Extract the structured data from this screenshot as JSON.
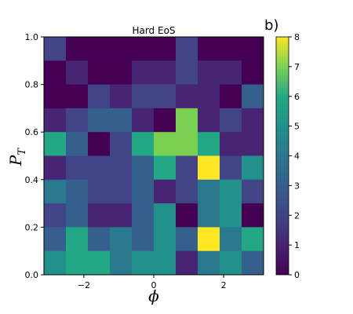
{
  "chart_data": {
    "type": "heatmap",
    "title": "Hard EoS",
    "panel_label": "b)",
    "xlabel": "ϕ",
    "ylabel_main": "P",
    "ylabel_sub": "T",
    "xlim": [
      -3.1416,
      3.1416
    ],
    "ylim": [
      0.0,
      1.0
    ],
    "x_ticks": [
      -2,
      0,
      2
    ],
    "x_tick_labels": [
      "−2",
      "0",
      "2"
    ],
    "y_ticks": [
      0.0,
      0.2,
      0.4,
      0.6,
      0.8,
      1.0
    ],
    "y_tick_labels": [
      "0.0",
      "0.2",
      "0.4",
      "0.6",
      "0.8",
      "1.0"
    ],
    "colorbar": {
      "min": 0,
      "max": 8,
      "ticks": [
        0,
        1,
        2,
        3,
        4,
        5,
        6,
        7,
        8
      ],
      "tick_labels": [
        "0",
        "1",
        "2",
        "3",
        "4",
        "5",
        "6",
        "7",
        "8"
      ],
      "colormap": "viridis"
    },
    "n_cols": 10,
    "n_rows": 10,
    "grid": false,
    "counts_rows_top_to_bottom": [
      [
        2,
        0,
        0,
        0,
        0,
        0,
        2,
        0,
        0,
        0
      ],
      [
        0,
        1,
        0,
        0,
        1,
        1,
        2,
        1,
        1,
        0
      ],
      [
        0,
        0,
        2,
        1,
        2,
        2,
        1,
        1,
        0,
        3
      ],
      [
        1,
        2,
        3,
        3,
        1,
        0,
        7,
        1,
        2,
        1
      ],
      [
        6,
        3,
        0,
        2,
        6,
        7,
        7,
        6,
        1,
        1
      ],
      [
        1,
        2,
        2,
        2,
        3,
        6,
        2,
        8,
        2,
        5
      ],
      [
        4,
        3,
        2,
        2,
        3,
        1,
        2,
        4,
        5,
        2
      ],
      [
        2,
        3,
        1,
        1,
        3,
        5,
        0,
        4,
        5,
        0
      ],
      [
        3,
        6,
        3,
        4,
        3,
        5,
        3,
        8,
        4,
        6
      ],
      [
        5,
        6,
        6,
        4,
        5,
        5,
        1,
        4,
        5,
        3
      ]
    ]
  }
}
